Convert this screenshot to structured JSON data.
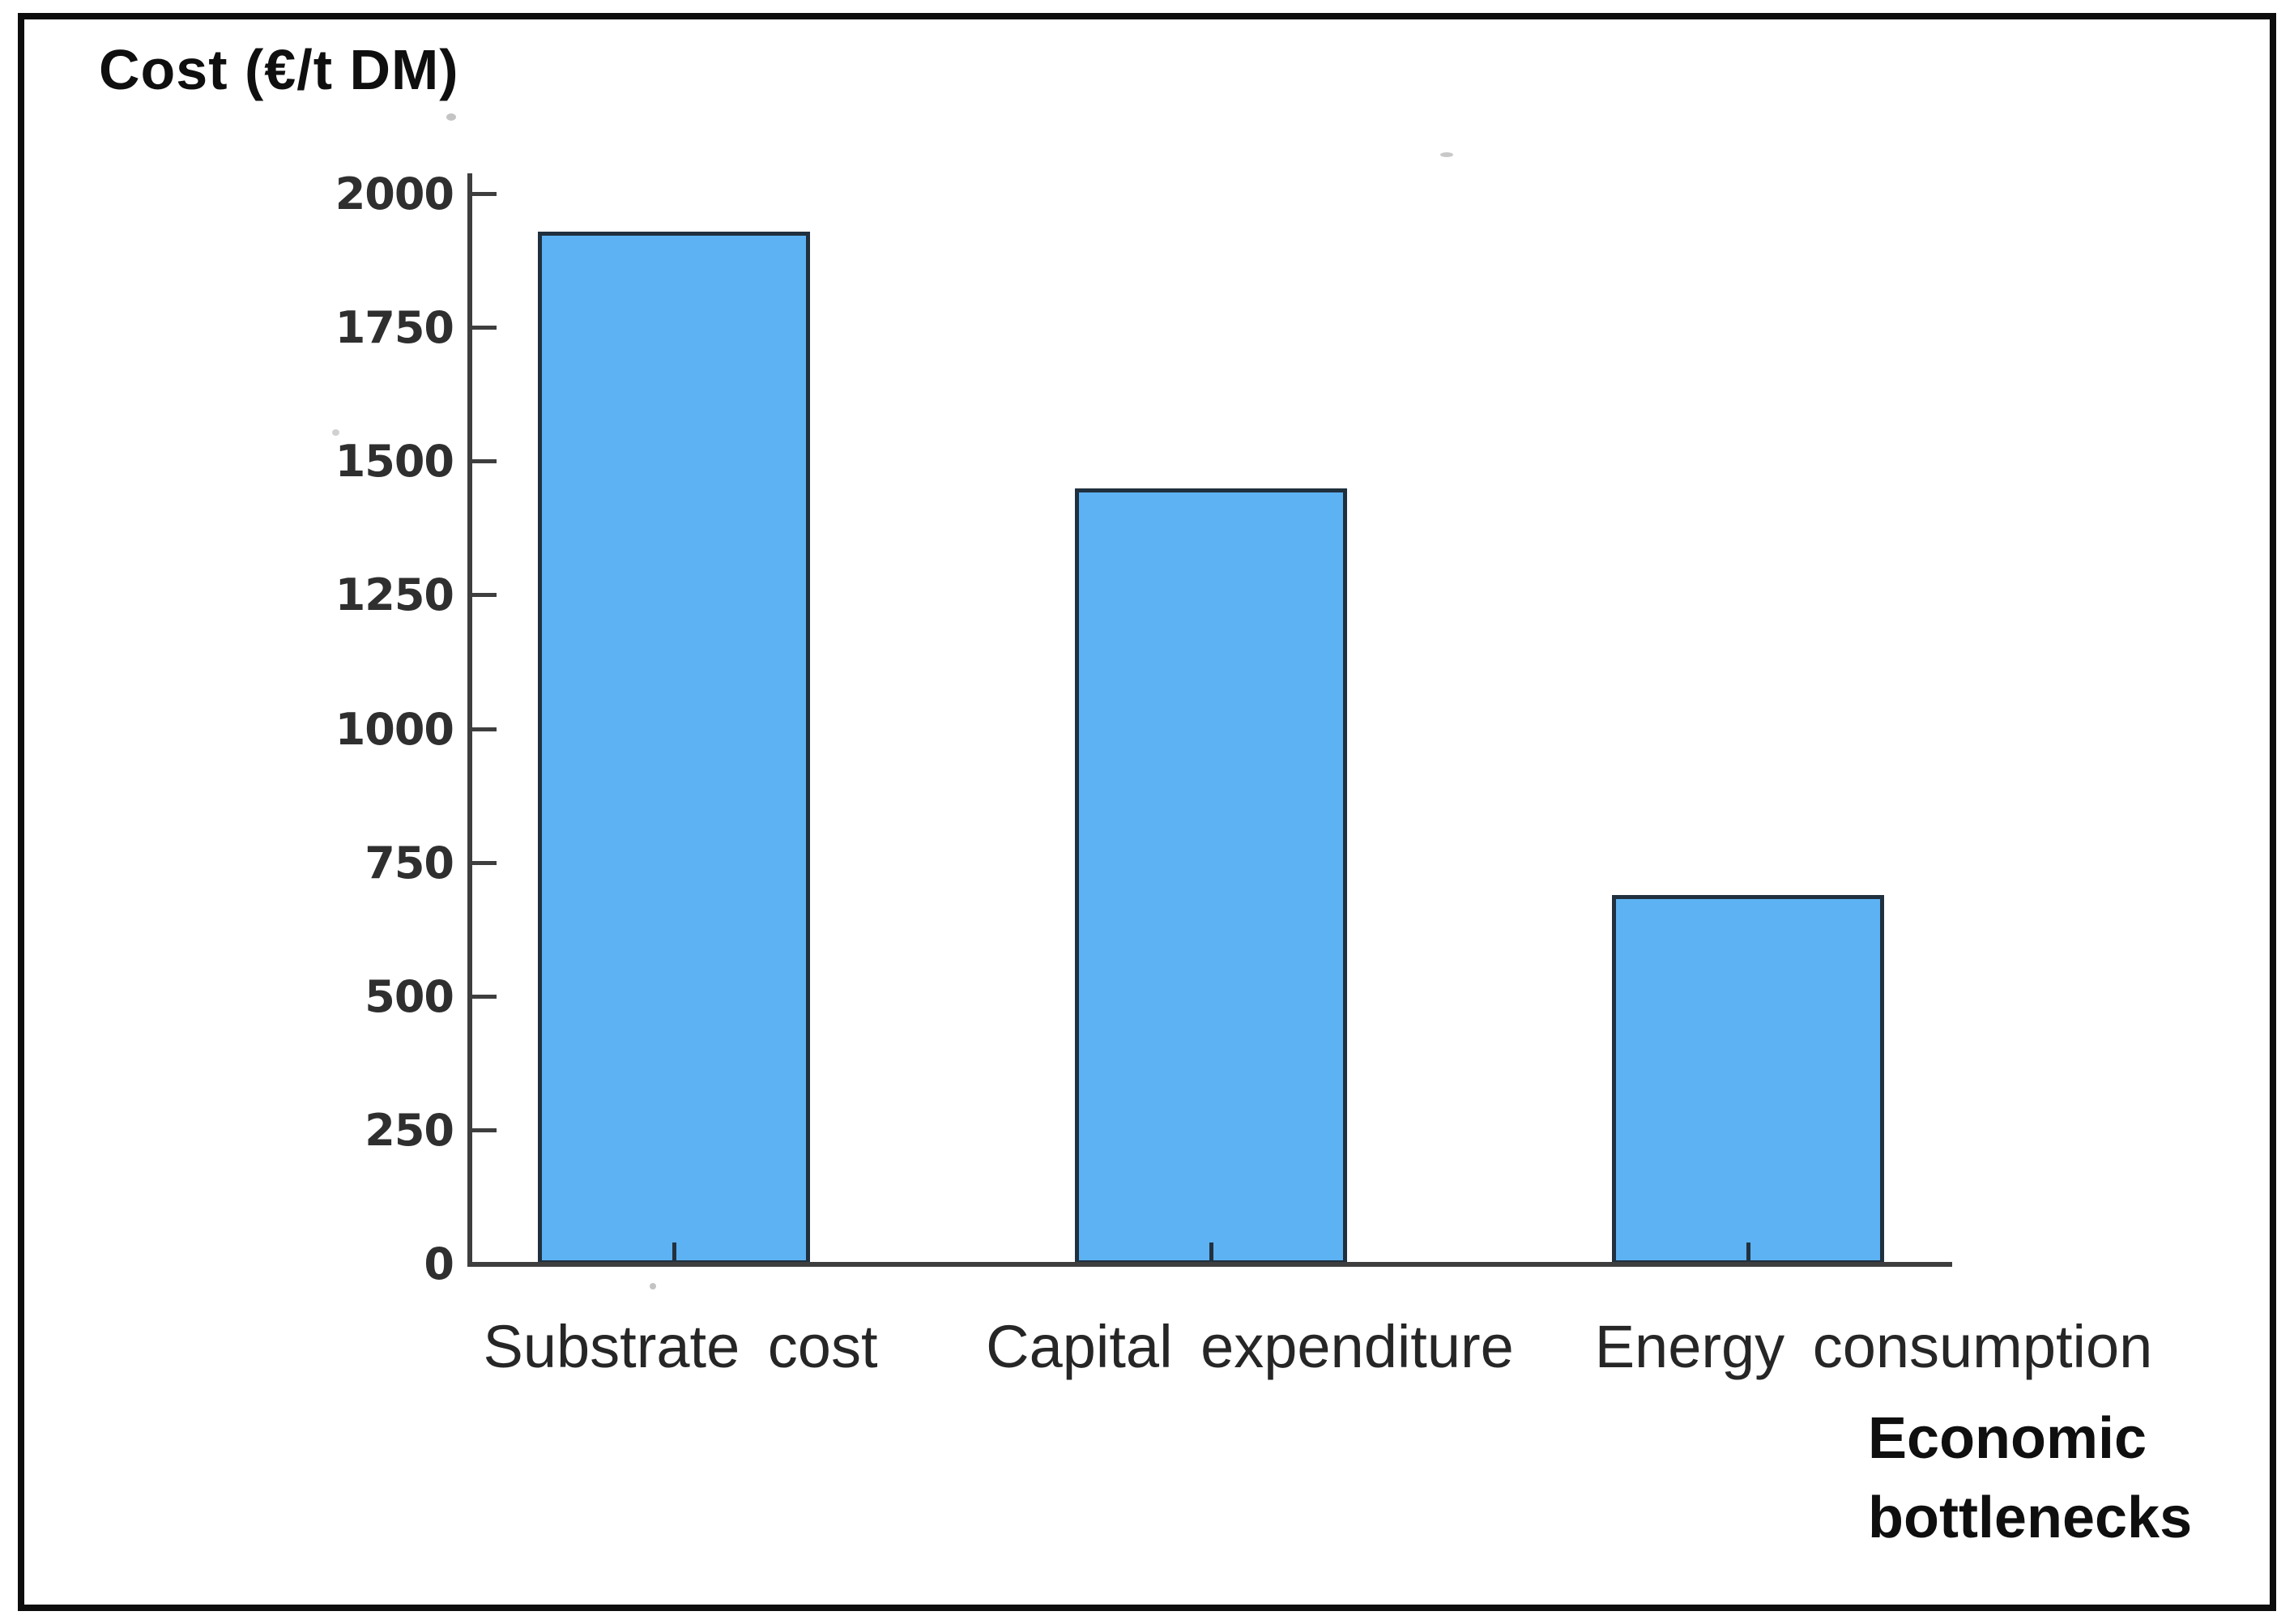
{
  "chart_data": {
    "type": "bar",
    "title": "Cost (€/t DM)",
    "xlabel": "Economic bottlenecks",
    "ylabel": "Cost (€/t DM)",
    "categories": [
      "Substrate cost",
      "Capital expenditure",
      "Energy consumption"
    ],
    "values": [
      1930,
      1450,
      690
    ],
    "yticks": [
      0,
      250,
      500,
      750,
      1000,
      1250,
      1500,
      1750,
      2000
    ],
    "ylim": [
      0,
      2000
    ],
    "grid": false,
    "legend": null,
    "bar_color": "#5CB2F2",
    "bar_border_color": "#20303E",
    "axis_color": "#3E3E3E",
    "frame_color": "#0D0D0D"
  }
}
